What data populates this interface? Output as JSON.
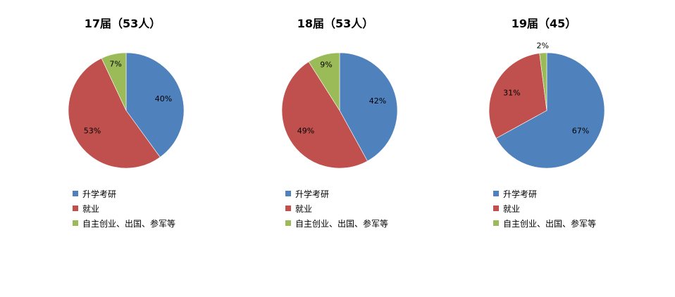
{
  "chart_data": [
    {
      "type": "pie",
      "title": "17届（53人）",
      "categories": [
        "升学考研",
        "就业",
        "自主创业、出国、参军等"
      ],
      "values": [
        40,
        53,
        7
      ],
      "data_labels": [
        "40%",
        "53%",
        "7%"
      ],
      "colors": [
        "#4f81bd",
        "#c0504d",
        "#9bbb59"
      ],
      "legend": "bottom-left"
    },
    {
      "type": "pie",
      "title": "18届（53人）",
      "categories": [
        "升学考研",
        "就业",
        "自主创业、出国、参军等"
      ],
      "values": [
        42,
        49,
        9
      ],
      "data_labels": [
        "42%",
        "49%",
        "9%"
      ],
      "colors": [
        "#4f81bd",
        "#c0504d",
        "#9bbb59"
      ],
      "legend": "bottom-left"
    },
    {
      "type": "pie",
      "title": "19届（45）",
      "categories": [
        "升学考研",
        "就业",
        "自主创业、出国、参军等"
      ],
      "values": [
        67,
        31,
        2
      ],
      "data_labels": [
        "67%",
        "31%",
        "2%"
      ],
      "colors": [
        "#4f81bd",
        "#c0504d",
        "#9bbb59"
      ],
      "legend": "bottom-left"
    }
  ]
}
